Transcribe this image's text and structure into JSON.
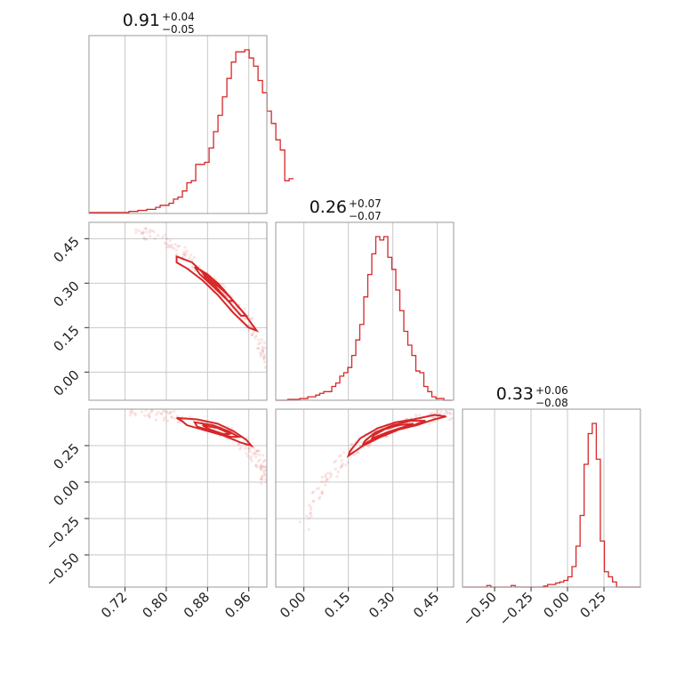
{
  "chart_data": {
    "type": "corner",
    "color": "#d62728",
    "grid": true,
    "parameters": [
      {
        "median": 0.91,
        "plus": "0.04",
        "minus": "0.05",
        "range": [
          0.65,
          0.995
        ],
        "ticks": [
          0.72,
          0.8,
          0.88,
          0.96
        ],
        "tick_labels": [
          "0.72",
          "0.80",
          "0.88",
          "0.96"
        ]
      },
      {
        "median": 0.26,
        "plus": "0.07",
        "minus": "0.07",
        "range": [
          -0.095,
          0.505
        ],
        "ticks": [
          0.0,
          0.15,
          0.3,
          0.45
        ],
        "tick_labels": [
          "0.00",
          "0.15",
          "0.30",
          "0.45"
        ]
      },
      {
        "median": 0.33,
        "plus": "0.06",
        "minus": "0.08",
        "range": [
          -0.72,
          0.5
        ],
        "ticks": [
          -0.5,
          -0.25,
          0.0,
          0.25
        ],
        "tick_labels": [
          "−0.50",
          "−0.25",
          "0.00",
          "0.25"
        ]
      }
    ],
    "titles": [
      {
        "main": "0.91",
        "plus": "+0.04",
        "minus": "−0.05"
      },
      {
        "main": "0.26",
        "plus": "+0.07",
        "minus": "−0.07"
      },
      {
        "main": "0.33",
        "plus": "+0.06",
        "minus": "−0.08"
      }
    ],
    "histograms": [
      {
        "edges_start": 0.65,
        "bin_width": 0.00863,
        "counts": [
          0.5,
          0.5,
          0.5,
          0.5,
          0.5,
          0.5,
          0.5,
          0.5,
          0.5,
          1,
          1,
          1.5,
          1.5,
          2,
          2,
          3,
          4,
          4,
          5,
          7,
          8,
          11,
          15,
          16,
          24,
          24,
          25,
          32,
          40,
          48,
          57,
          66,
          74,
          79,
          79,
          80,
          76,
          72,
          65,
          59,
          50,
          44,
          36,
          31,
          16,
          17
        ]
      },
      {
        "edges_start": -0.095,
        "bin_width": 0.0135,
        "counts": [
          0,
          0,
          0,
          0.5,
          0.5,
          0.5,
          1,
          1,
          2,
          2,
          3,
          4,
          5,
          5,
          8,
          10,
          14,
          16,
          19,
          26,
          35,
          44,
          60,
          73,
          85,
          95,
          93,
          95,
          83,
          76,
          64,
          52,
          40,
          32,
          26,
          17,
          16,
          8,
          5,
          2,
          1,
          1,
          0,
          0
        ]
      },
      {
        "edges_start": -0.72,
        "bin_width": 0.0278,
        "counts": [
          0,
          0,
          0,
          0,
          0,
          0,
          0.3,
          0,
          0,
          0,
          0,
          0,
          0.3,
          0,
          0,
          0,
          0,
          0,
          0,
          0,
          0.2,
          0.5,
          0.5,
          0.8,
          1,
          1.3,
          2,
          4,
          8,
          14,
          24,
          30,
          32,
          25,
          9,
          3,
          2,
          1,
          0,
          0,
          0,
          0,
          0,
          0
        ]
      }
    ],
    "pairs": [
      {
        "row": 1,
        "col": 0,
        "curve": [
          [
            0.74,
            0.48
          ],
          [
            0.8,
            0.44
          ],
          [
            0.84,
            0.39
          ],
          [
            0.88,
            0.32
          ],
          [
            0.92,
            0.25
          ],
          [
            0.95,
            0.19
          ],
          [
            0.975,
            0.13
          ],
          [
            0.99,
            0.07
          ],
          [
            0.995,
            0.03
          ]
        ],
        "contours": [
          [
            [
              0.82,
              0.39
            ],
            [
              0.85,
              0.37
            ],
            [
              0.88,
              0.32
            ],
            [
              0.92,
              0.26
            ],
            [
              0.95,
              0.2
            ],
            [
              0.975,
              0.14
            ],
            [
              0.96,
              0.15
            ],
            [
              0.93,
              0.2
            ],
            [
              0.9,
              0.26
            ],
            [
              0.87,
              0.31
            ],
            [
              0.84,
              0.35
            ],
            [
              0.82,
              0.37
            ]
          ],
          [
            [
              0.855,
              0.355
            ],
            [
              0.88,
              0.33
            ],
            [
              0.91,
              0.28
            ],
            [
              0.94,
              0.22
            ],
            [
              0.955,
              0.19
            ],
            [
              0.945,
              0.19
            ],
            [
              0.92,
              0.24
            ],
            [
              0.89,
              0.29
            ],
            [
              0.865,
              0.33
            ]
          ],
          [
            [
              0.87,
              0.34
            ],
            [
              0.9,
              0.3
            ],
            [
              0.93,
              0.24
            ],
            [
              0.92,
              0.24
            ],
            [
              0.895,
              0.29
            ],
            [
              0.875,
              0.32
            ]
          ]
        ]
      },
      {
        "row": 2,
        "col": 0,
        "curve": [
          [
            0.73,
            0.48
          ],
          [
            0.78,
            0.46
          ],
          [
            0.83,
            0.44
          ],
          [
            0.88,
            0.39
          ],
          [
            0.92,
            0.34
          ],
          [
            0.95,
            0.26
          ],
          [
            0.975,
            0.18
          ],
          [
            0.99,
            0.09
          ],
          [
            0.995,
            0.0
          ]
        ],
        "contours": [
          [
            [
              0.82,
              0.44
            ],
            [
              0.86,
              0.43
            ],
            [
              0.9,
              0.4
            ],
            [
              0.93,
              0.35
            ],
            [
              0.955,
              0.29
            ],
            [
              0.965,
              0.25
            ],
            [
              0.945,
              0.27
            ],
            [
              0.91,
              0.32
            ],
            [
              0.87,
              0.36
            ],
            [
              0.84,
              0.39
            ],
            [
              0.83,
              0.42
            ]
          ],
          [
            [
              0.855,
              0.41
            ],
            [
              0.89,
              0.39
            ],
            [
              0.92,
              0.35
            ],
            [
              0.94,
              0.31
            ],
            [
              0.925,
              0.31
            ],
            [
              0.89,
              0.35
            ],
            [
              0.86,
              0.38
            ]
          ],
          [
            [
              0.87,
              0.39
            ],
            [
              0.9,
              0.37
            ],
            [
              0.925,
              0.33
            ],
            [
              0.91,
              0.33
            ],
            [
              0.885,
              0.36
            ]
          ]
        ]
      },
      {
        "row": 2,
        "col": 1,
        "curve": [
          [
            0.0,
            -0.3
          ],
          [
            0.05,
            -0.05
          ],
          [
            0.1,
            0.07
          ],
          [
            0.15,
            0.18
          ],
          [
            0.2,
            0.27
          ],
          [
            0.25,
            0.33
          ],
          [
            0.3,
            0.38
          ],
          [
            0.35,
            0.41
          ],
          [
            0.4,
            0.43
          ],
          [
            0.45,
            0.45
          ],
          [
            0.5,
            0.47
          ]
        ],
        "contours": [
          [
            [
              0.15,
              0.18
            ],
            [
              0.2,
              0.25
            ],
            [
              0.26,
              0.31
            ],
            [
              0.32,
              0.36
            ],
            [
              0.38,
              0.39
            ],
            [
              0.44,
              0.43
            ],
            [
              0.48,
              0.45
            ],
            [
              0.44,
              0.46
            ],
            [
              0.37,
              0.43
            ],
            [
              0.31,
              0.41
            ],
            [
              0.25,
              0.37
            ],
            [
              0.19,
              0.3
            ],
            [
              0.155,
              0.21
            ]
          ],
          [
            [
              0.2,
              0.26
            ],
            [
              0.25,
              0.31
            ],
            [
              0.31,
              0.36
            ],
            [
              0.37,
              0.39
            ],
            [
              0.41,
              0.42
            ],
            [
              0.36,
              0.42
            ],
            [
              0.3,
              0.39
            ],
            [
              0.24,
              0.34
            ],
            [
              0.205,
              0.28
            ]
          ],
          [
            [
              0.23,
              0.3
            ],
            [
              0.28,
              0.34
            ],
            [
              0.34,
              0.38
            ],
            [
              0.37,
              0.4
            ],
            [
              0.32,
              0.39
            ],
            [
              0.27,
              0.36
            ],
            [
              0.235,
              0.32
            ]
          ]
        ]
      }
    ]
  }
}
